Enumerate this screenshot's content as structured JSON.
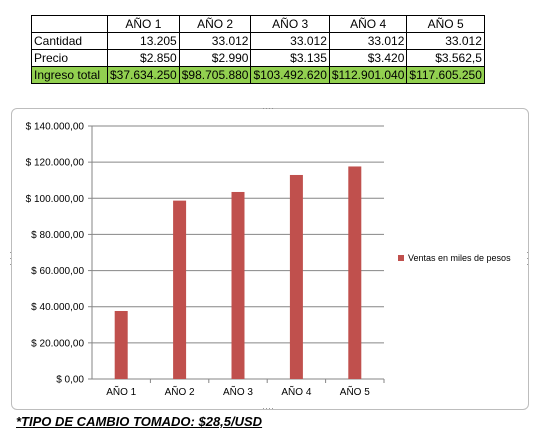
{
  "table": {
    "headers": [
      "",
      "AÑO 1",
      "AÑO 2",
      "AÑO 3",
      "AÑO 4",
      "AÑO 5"
    ],
    "rows": [
      {
        "label": "Cantidad",
        "values": [
          "13.205",
          "33.012",
          "33.012",
          "33.012",
          "33.012"
        ]
      },
      {
        "label": "Precio",
        "values": [
          "$2.850",
          "$2.990",
          "$3.135",
          "$3.420",
          "$3.562,5"
        ]
      },
      {
        "label": "Ingreso total",
        "values": [
          "$37.634.250",
          "$98.705.880",
          "$103.492.620",
          "$112.901.040",
          "$117.605.250"
        ]
      }
    ],
    "total_row_color": "#92d050"
  },
  "chart_data": {
    "type": "bar",
    "categories": [
      "AÑO 1",
      "AÑO 2",
      "AÑO 3",
      "AÑO 4",
      "AÑO 5"
    ],
    "series": [
      {
        "name": "Ventas en miles de pesos",
        "values": [
          37634.25,
          98705.88,
          103492.62,
          112901.04,
          117605.25
        ],
        "color": "#c0504d"
      }
    ],
    "ylim": [
      0,
      140000
    ],
    "yticks": [
      0,
      20000,
      40000,
      60000,
      80000,
      100000,
      120000,
      140000
    ],
    "ytick_labels": [
      "$ 0,00",
      "$ 20.000,00",
      "$ 40.000,00",
      "$ 60.000,00",
      "$ 80.000,00",
      "$ 100.000,00",
      "$ 120.000,00",
      "$ 140.000,00"
    ],
    "grid": true,
    "legend_position": "right",
    "title": "",
    "xlabel": "",
    "ylabel": ""
  },
  "footnote": "*TIPO DE CAMBIO TOMADO: $28,5/USD"
}
